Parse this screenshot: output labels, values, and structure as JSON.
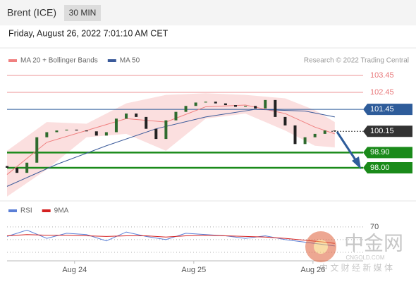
{
  "header": {
    "title": "Brent (ICE)",
    "timeframe": "30 MIN",
    "timestamp": "Friday, August 26, 2022 7:01:10 AM CET"
  },
  "watermark": {
    "brand": "中金网",
    "site": "CNGOLD.COM",
    "slogan": "中 文 财 经 新 媒 体"
  },
  "chart_data": [
    {
      "type": "candlestick",
      "credit": "Research © 2022 Trading Central",
      "x": [
        0,
        2,
        4,
        6,
        8,
        10,
        12,
        14,
        16,
        18,
        20,
        22,
        24,
        26,
        28,
        30,
        32,
        34,
        36,
        38,
        40,
        42,
        44,
        46,
        48,
        50,
        52,
        54,
        56,
        58,
        60,
        62,
        64,
        66
      ],
      "open": [
        98.1,
        98.0,
        97.7,
        98.3,
        99.8,
        100.1,
        100.2,
        100.25,
        100.2,
        100.15,
        99.9,
        100.1,
        100.9,
        101.2,
        101.0,
        100.3,
        99.7,
        100.8,
        101.3,
        101.65,
        101.85,
        101.9,
        101.8,
        101.7,
        101.6,
        101.65,
        101.5,
        102.0,
        101.0,
        100.5,
        99.4,
        99.8,
        100.0,
        100.2
      ],
      "close": [
        98.0,
        97.7,
        98.3,
        99.8,
        100.1,
        100.2,
        100.25,
        100.2,
        100.15,
        99.9,
        100.1,
        100.9,
        101.2,
        101.0,
        100.3,
        99.7,
        100.8,
        101.3,
        101.65,
        101.85,
        101.9,
        101.8,
        101.7,
        101.6,
        101.65,
        101.5,
        102.0,
        101.0,
        100.5,
        99.4,
        99.8,
        100.0,
        100.2,
        100.15
      ],
      "up_color": "#2e6b2e",
      "down_color": "#222222",
      "series": [
        {
          "name": "MA 20 + Bollinger Bands",
          "color": "#f08080",
          "x": [
            0,
            8,
            16,
            24,
            32,
            40,
            48,
            56,
            62,
            66
          ],
          "values": [
            97.6,
            99.5,
            100.2,
            100.9,
            100.7,
            101.6,
            101.7,
            101.2,
            100.4,
            100.0
          ],
          "band_upper": [
            99.0,
            100.7,
            100.6,
            101.8,
            102.3,
            102.4,
            102.3,
            102.1,
            101.4,
            100.7
          ],
          "band_lower": [
            96.3,
            97.9,
            99.8,
            100.0,
            99.0,
            100.9,
            101.2,
            100.2,
            99.3,
            99.2
          ]
        },
        {
          "name": "MA 50",
          "color": "#3a5a9a",
          "x": [
            0,
            10,
            20,
            30,
            40,
            50,
            60,
            66
          ],
          "values": [
            96.9,
            98.2,
            99.3,
            100.3,
            101.0,
            101.45,
            101.35,
            101.0
          ]
        }
      ],
      "xlim": [
        0,
        71.7
      ],
      "xticks": [
        {
          "value": 13.6,
          "label": "Aug 24"
        },
        {
          "value": 37.6,
          "label": "Aug 25"
        },
        {
          "value": 61.6,
          "label": "Aug 26"
        }
      ],
      "ylim": [
        96.25,
        103.95
      ],
      "yticks": [
        103.45,
        102.45,
        101.45,
        100.15,
        {
          "value": 98.9,
          "label": "98.90"
        },
        {
          "value": 98,
          "label": "98.00"
        }
      ],
      "ytick_colors": [
        "#e8787a",
        "#e8787a",
        "#2e5c9a",
        "#333333",
        "#1a8a1a",
        "#1a8a1a"
      ],
      "ytick_lines": [
        "thin",
        "thin",
        "thin",
        "dotted",
        "thick",
        "thick"
      ],
      "ytick_boxed": [
        false,
        false,
        true,
        true,
        true,
        true
      ]
    },
    {
      "type": "line",
      "series": [
        {
          "name": "RSI",
          "color": "#5b7fd6",
          "x": [
            0,
            4,
            8,
            12,
            16,
            20,
            24,
            28,
            32,
            36,
            40,
            44,
            48,
            52,
            56,
            60,
            64,
            66
          ],
          "values": [
            55,
            65,
            52,
            60,
            58,
            48,
            62,
            55,
            50,
            60,
            58,
            56,
            52,
            56,
            50,
            46,
            42,
            40
          ]
        },
        {
          "name": "9MA",
          "color": "#d42020",
          "x": [
            0,
            4,
            8,
            12,
            16,
            20,
            24,
            28,
            32,
            36,
            40,
            44,
            48,
            52,
            56,
            60,
            64,
            66
          ],
          "values": [
            56,
            58,
            57,
            57,
            56,
            55,
            56,
            56,
            54,
            56,
            57,
            56,
            55,
            54,
            52,
            49,
            46,
            44
          ]
        }
      ],
      "xlim": [
        0,
        71.7
      ],
      "ylim": [
        11,
        111
      ],
      "yticks": [
        70
      ],
      "guides": [
        50,
        30
      ]
    }
  ]
}
